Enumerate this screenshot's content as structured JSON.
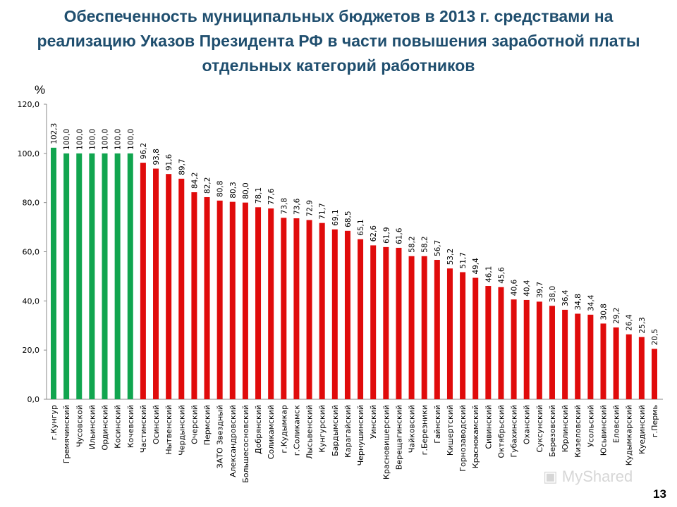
{
  "title": "Обеспеченность муниципальных бюджетов в 2013 г. средствами на реализацию Указов Президента РФ в части повышения заработной платы отдельных категорий работников",
  "page_number": "13",
  "watermark": "MyShared",
  "colors": {
    "green": "#11a54f",
    "red": "#e00b0b",
    "title": "#1f4e6e"
  },
  "chart_data": {
    "type": "bar",
    "title": "Обеспеченность муниципальных бюджетов в 2013 г. средствами на реализацию Указов Президента РФ в части повышения заработной платы отдельных категорий работников",
    "ylabel": "%",
    "xlabel": "",
    "ylim": [
      0,
      120
    ],
    "yticks": [
      "0,0",
      "20,0",
      "40,0",
      "60,0",
      "80,0",
      "100,0",
      "120,0"
    ],
    "grid": false,
    "categories": [
      "г.Кунгур",
      "Гремячинский",
      "Чусовской",
      "Ильинский",
      "Ординский",
      "Косинский",
      "Кочевский",
      "Частинский",
      "Осинский",
      "Нытвенский",
      "Чердынский",
      "Очерский",
      "Пермский",
      "ЗАТО Звездный",
      "Александровский",
      "Большесосновский",
      "Добрянский",
      "Соликамский",
      "г.Кудымкар",
      "г.Соликамск",
      "Лысьвенский",
      "Кунгурский",
      "Бардымский",
      "Карагайский",
      "Чернушинский",
      "Уинский",
      "Красновишерский",
      "Верещагинский",
      "Чайковский",
      "г.Березники",
      "Гайнский",
      "Кишертский",
      "Горнозаводский",
      "Краснокамский",
      "Сивинский",
      "Октябрьский",
      "Губахинский",
      "Оханский",
      "Суксунский",
      "Березовский",
      "Юрлинский",
      "Кизеловский",
      "Усольский",
      "Юсьвинский",
      "Еловский",
      "Кудымкарский",
      "Куединский",
      "г.Пермь"
    ],
    "values": [
      102.3,
      100.0,
      100.0,
      100.0,
      100.0,
      100.0,
      100.0,
      96.2,
      93.8,
      91.6,
      89.7,
      84.2,
      82.2,
      80.8,
      80.3,
      80.0,
      78.1,
      77.6,
      73.8,
      73.6,
      72.9,
      71.7,
      69.1,
      68.5,
      65.1,
      62.6,
      61.9,
      61.6,
      58.2,
      58.2,
      56.7,
      53.2,
      51.7,
      49.4,
      46.1,
      45.6,
      40.6,
      40.4,
      39.7,
      38.0,
      36.4,
      34.8,
      34.4,
      30.8,
      29.2,
      26.4,
      25.3,
      20.5
    ],
    "data_labels": [
      "102,3",
      "100,0",
      "100,0",
      "100,0",
      "100,0",
      "100,0",
      "100,0",
      "96,2",
      "93,8",
      "91,6",
      "89,7",
      "84,2",
      "82,2",
      "80,8",
      "80,3",
      "80,0",
      "78,1",
      "77,6",
      "73,8",
      "73,6",
      "72,9",
      "71,7",
      "69,1",
      "68,5",
      "65,1",
      "62,6",
      "61,9",
      "61,6",
      "58,2",
      "58,2",
      "56,7",
      "53,2",
      "51,7",
      "49,4",
      "46,1",
      "45,6",
      "40,6",
      "40,4",
      "39,7",
      "38,0",
      "36,4",
      "34,8",
      "34,4",
      "30,8",
      "29,2",
      "26,4",
      "25,3",
      "20,5"
    ],
    "bar_colors": [
      "green",
      "green",
      "green",
      "green",
      "green",
      "green",
      "green",
      "red",
      "red",
      "red",
      "red",
      "red",
      "red",
      "red",
      "red",
      "red",
      "red",
      "red",
      "red",
      "red",
      "red",
      "red",
      "red",
      "red",
      "red",
      "red",
      "red",
      "red",
      "red",
      "red",
      "red",
      "red",
      "red",
      "red",
      "red",
      "red",
      "red",
      "red",
      "red",
      "red",
      "red",
      "red",
      "red",
      "red",
      "red",
      "red",
      "red",
      "red"
    ]
  }
}
